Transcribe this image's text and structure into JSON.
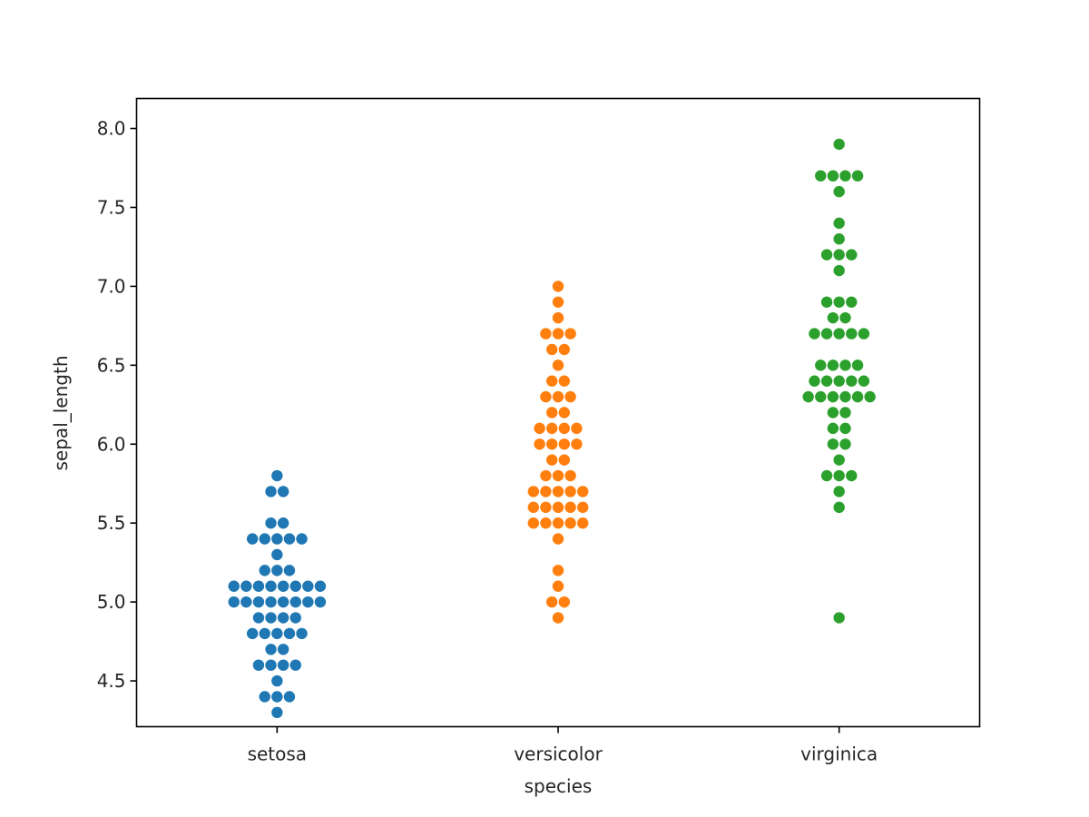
{
  "chart_data": {
    "type": "scatter",
    "subtype": "swarmplot",
    "title": "",
    "xlabel": "species",
    "ylabel": "sepal_length",
    "categories": [
      "setosa",
      "versicolor",
      "virginica"
    ],
    "colors": [
      "#1f77b4",
      "#ff7f0e",
      "#2ca02c"
    ],
    "ylim": [
      4.21,
      8.19
    ],
    "yticks": [
      4.5,
      5.0,
      5.5,
      6.0,
      6.5,
      7.0,
      7.5,
      8.0
    ],
    "ytick_labels": [
      "4.5",
      "5.0",
      "5.5",
      "6.0",
      "6.5",
      "7.0",
      "7.5",
      "8.0"
    ],
    "grid": false,
    "legend": null,
    "series": [
      {
        "name": "setosa",
        "counts": {
          "5.8": 1,
          "5.7": 2,
          "5.5": 2,
          "5.4": 5,
          "5.3": 1,
          "5.2": 3,
          "5.1": 8,
          "5.0": 8,
          "4.9": 4,
          "4.8": 5,
          "4.7": 2,
          "4.6": 4,
          "4.5": 1,
          "4.4": 3,
          "4.3": 1
        }
      },
      {
        "name": "versicolor",
        "counts": {
          "7.0": 1,
          "6.9": 1,
          "6.8": 1,
          "6.7": 3,
          "6.6": 2,
          "6.5": 1,
          "6.4": 2,
          "6.3": 3,
          "6.2": 2,
          "6.1": 4,
          "6.0": 4,
          "5.9": 2,
          "5.8": 3,
          "5.7": 5,
          "5.6": 5,
          "5.5": 5,
          "5.4": 1,
          "5.2": 1,
          "5.1": 1,
          "5.0": 2,
          "4.9": 1
        }
      },
      {
        "name": "virginica",
        "counts": {
          "7.9": 1,
          "7.7": 4,
          "7.6": 1,
          "7.4": 1,
          "7.3": 1,
          "7.2": 3,
          "7.1": 1,
          "6.9": 3,
          "6.8": 2,
          "6.7": 5,
          "6.5": 4,
          "6.4": 5,
          "6.3": 6,
          "6.2": 2,
          "6.1": 2,
          "6.0": 2,
          "5.9": 1,
          "5.8": 3,
          "5.7": 1,
          "5.6": 1,
          "4.9": 1
        }
      }
    ]
  }
}
